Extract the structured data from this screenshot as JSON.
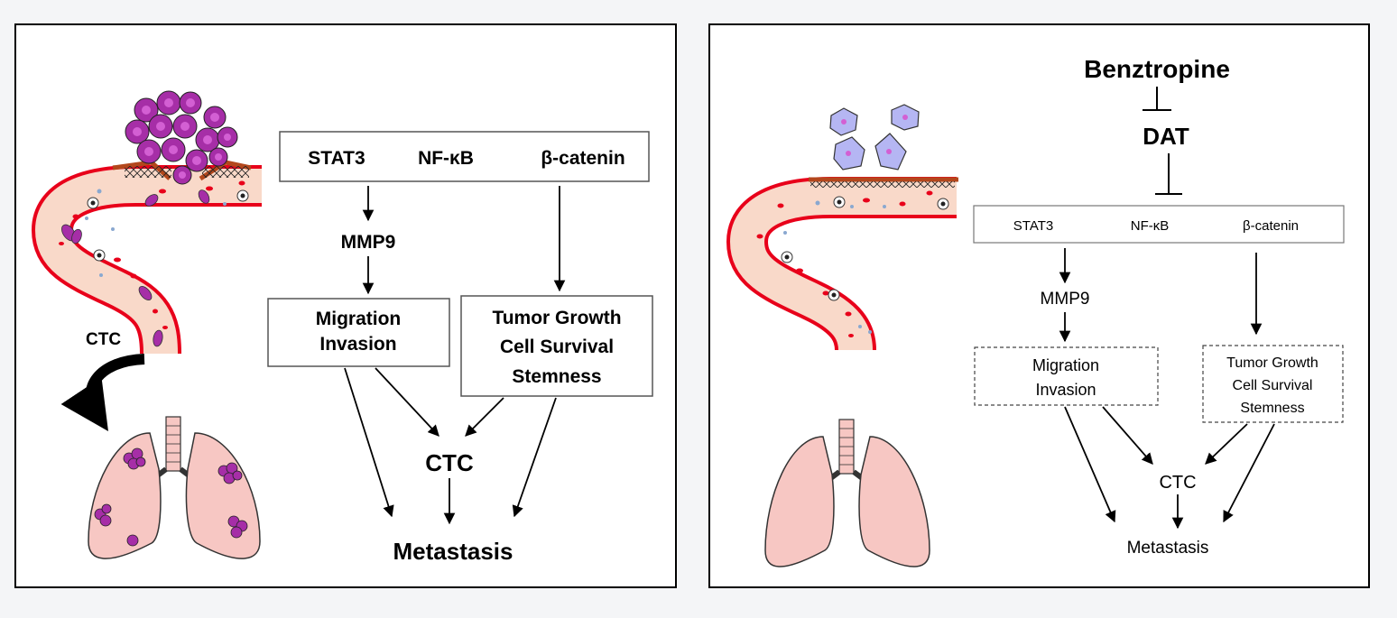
{
  "colors": {
    "background": "#f4f5f7",
    "panel": "#ffffff",
    "vessel_wall": "#e8001a",
    "vessel_lumen": "#f9d9c9",
    "tumor_cell": "#a62ea7",
    "tumor_nucleus": "#d35fd3",
    "lung": "#f7c7c3",
    "basement_membrane": "#b3471c",
    "dormant_cell": "#b5b6f3"
  },
  "left_panel": {
    "ctc_label": "CTC",
    "pathway_box": {
      "stat3": "STAT3",
      "nfkb": "NF-κB",
      "bcatenin": "β-catenin"
    },
    "mmp9": "MMP9",
    "migration_box": [
      "Migration",
      "Invasion"
    ],
    "growth_box": [
      "Tumor Growth",
      "Cell Survival",
      "Stemness"
    ],
    "ctc": "CTC",
    "metastasis": "Metastasis"
  },
  "right_panel": {
    "drug": "Benztropine",
    "target": "DAT",
    "pathway_box": {
      "stat3": "STAT3",
      "nfkb": "NF-κB",
      "bcatenin": "β-catenin"
    },
    "mmp9": "MMP9",
    "migration_box": [
      "Migration",
      "Invasion"
    ],
    "growth_box": [
      "Tumor Growth",
      "Cell Survival",
      "Stemness"
    ],
    "ctc": "CTC",
    "metastasis": "Metastasis"
  }
}
